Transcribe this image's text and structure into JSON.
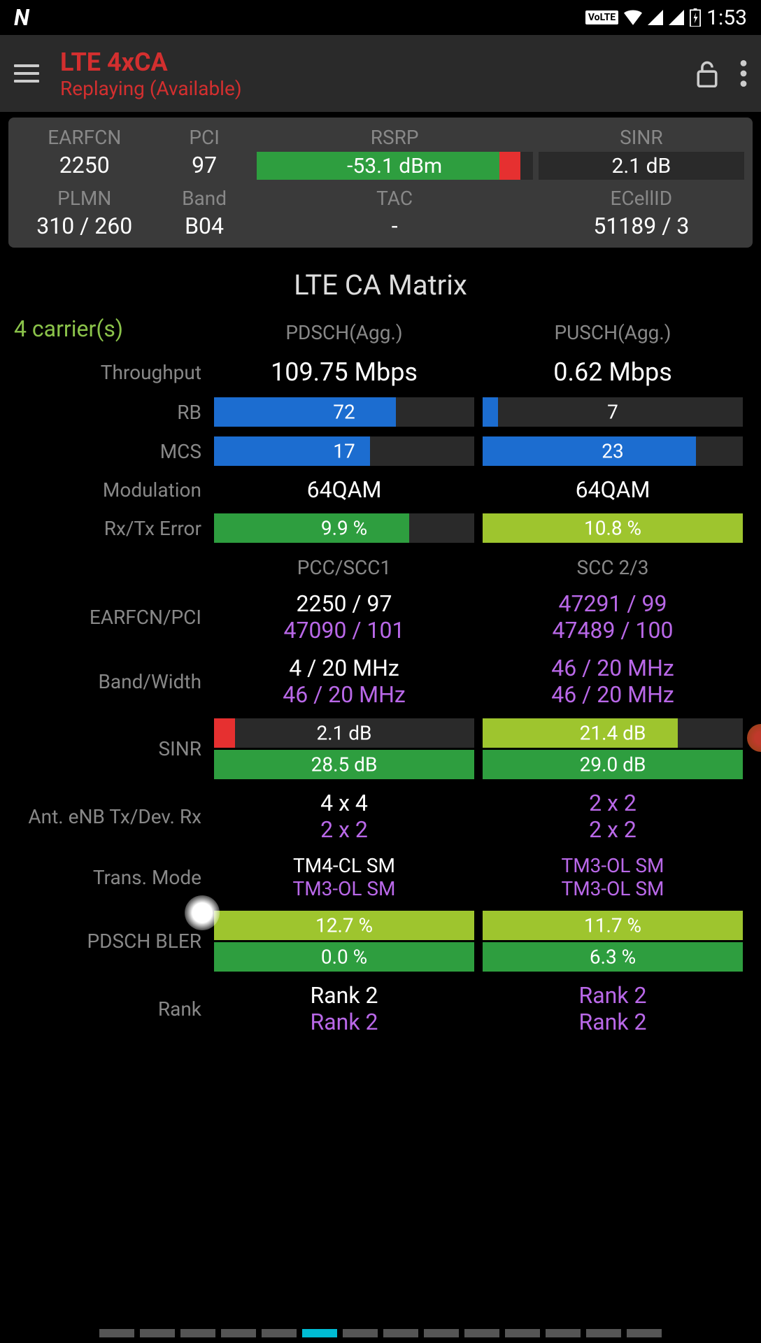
{
  "status_bar": {
    "time": "1:53",
    "volte": "VoLTE"
  },
  "app_bar": {
    "title": "LTE 4xCA",
    "subtitle": "Replaying (Available)"
  },
  "info": {
    "row1": {
      "earfcn": {
        "label": "EARFCN",
        "value": "2250"
      },
      "pci": {
        "label": "PCI",
        "value": "97"
      },
      "rsrp": {
        "label": "RSRP",
        "value": "-53.1 dBm",
        "fill_pct": 88,
        "fill_color": "#2e9e3f",
        "indicator_color": "#e63030"
      },
      "sinr": {
        "label": "SINR",
        "value": "2.1 dB",
        "fill_pct": 0,
        "fill_color": "#2a2a2a"
      }
    },
    "row2": {
      "plmn": {
        "label": "PLMN",
        "value": "310 / 260"
      },
      "band": {
        "label": "Band",
        "value": "B04"
      },
      "tac": {
        "label": "TAC",
        "value": "-"
      },
      "ecellid": {
        "label": "ECellID",
        "value": "51189 / 3"
      }
    }
  },
  "section_title": "LTE CA Matrix",
  "carriers": "4 carrier(s)",
  "colors": {
    "green": "#2e9e3f",
    "olive": "#9ec52e",
    "blue": "#1c6dd0",
    "red": "#e63030",
    "purple": "#b968e8",
    "dark": "#2a2a2a"
  },
  "matrix": {
    "headers": {
      "col1": "PDSCH(Agg.)",
      "col2": "PUSCH(Agg.)"
    },
    "throughput": {
      "label": "Throughput",
      "col1": "109.75 Mbps",
      "col2": "0.62 Mbps"
    },
    "rb": {
      "label": "RB",
      "col1": {
        "value": "72",
        "fill_pct": 70,
        "fill_color": "#1c6dd0"
      },
      "col2": {
        "value": "7",
        "fill_pct": 6,
        "fill_color": "#1c6dd0"
      }
    },
    "mcs": {
      "label": "MCS",
      "col1": {
        "value": "17",
        "fill_pct": 60,
        "fill_color": "#1c6dd0"
      },
      "col2": {
        "value": "23",
        "fill_pct": 82,
        "fill_color": "#1c6dd0"
      }
    },
    "modulation": {
      "label": "Modulation",
      "col1": "64QAM",
      "col2": "64QAM"
    },
    "error": {
      "label": "Rx/Tx Error",
      "col1": {
        "value": "9.9 %",
        "fill_pct": 75,
        "fill_color": "#2e9e3f"
      },
      "col2": {
        "value": "10.8 %",
        "fill_pct": 100,
        "fill_color": "#9ec52e"
      }
    },
    "headers2": {
      "col1": "PCC/SCC1",
      "col2": "SCC 2/3"
    },
    "earfcn_pci": {
      "label": "EARFCN/PCI",
      "col1a": "2250 / 97",
      "col1b": "47090 / 101",
      "col2a": "47291 / 99",
      "col2b": "47489 / 100"
    },
    "band_width": {
      "label": "Band/Width",
      "col1a": "4 / 20 MHz",
      "col1b": "46 / 20 MHz",
      "col2a": "46 / 20 MHz",
      "col2b": "46 / 20 MHz"
    },
    "sinr_m": {
      "label": "SINR",
      "col1a": {
        "value": "2.1 dB",
        "fill_pct": 0,
        "ind_color": "#e63030",
        "ind_left": 0
      },
      "col1b": {
        "value": "28.5 dB",
        "fill_pct": 100,
        "fill_color": "#2e9e3f"
      },
      "col2a": {
        "value": "21.4 dB",
        "fill_pct": 75,
        "fill_color": "#9ec52e"
      },
      "col2b": {
        "value": "29.0 dB",
        "fill_pct": 100,
        "fill_color": "#2e9e3f"
      }
    },
    "ant": {
      "label": "Ant. eNB Tx/Dev. Rx",
      "col1a": "4 x 4",
      "col1b": "2 x 2",
      "col2a": "2 x 2",
      "col2b": "2 x 2"
    },
    "trans_mode": {
      "label": "Trans. Mode",
      "col1a": "TM4-CL SM",
      "col1b": "TM3-OL SM",
      "col2a": "TM3-OL SM",
      "col2b": "TM3-OL SM"
    },
    "bler": {
      "label": "PDSCH BLER",
      "col1a": {
        "value": "12.7 %",
        "fill_pct": 100,
        "fill_color": "#9ec52e"
      },
      "col1b": {
        "value": "0.0 %",
        "fill_pct": 100,
        "fill_color": "#2e9e3f"
      },
      "col2a": {
        "value": "11.7 %",
        "fill_pct": 100,
        "fill_color": "#9ec52e"
      },
      "col2b": {
        "value": "6.3 %",
        "fill_pct": 100,
        "fill_color": "#2e9e3f"
      }
    },
    "rank": {
      "label": "Rank",
      "col1a": "Rank 2",
      "col1b": "Rank 2",
      "col2a": "Rank 2",
      "col2b": "Rank 2"
    }
  },
  "page_indicator": {
    "total": 14,
    "active": 5
  }
}
